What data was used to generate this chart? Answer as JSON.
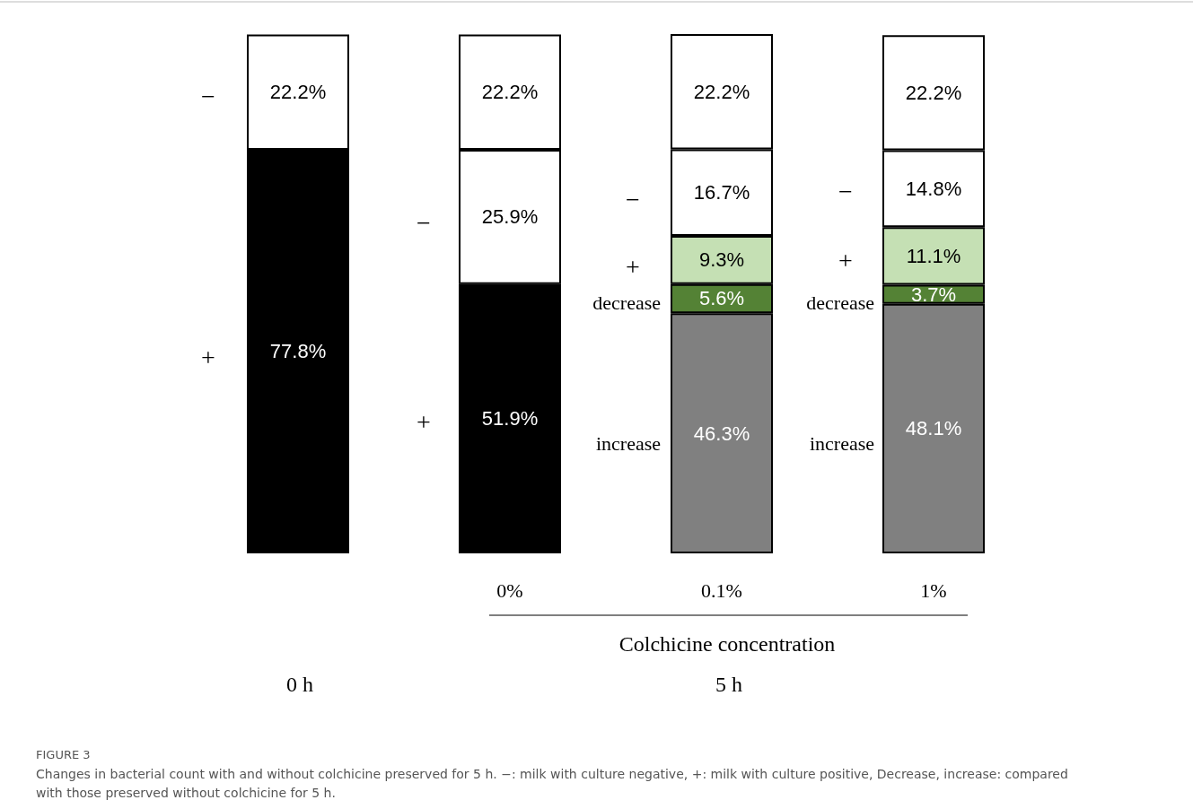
{
  "chart_data": {
    "type": "bar",
    "stacked": true,
    "categories": [
      null,
      "0%",
      "0.1%",
      "1%"
    ],
    "series": [
      {
        "values": [
          77.8,
          51.9,
          46.3,
          48.1
        ],
        "colors": [
          "#000000",
          "#000000",
          "#808080",
          "#808080"
        ],
        "value_labels": [
          "77.8%",
          "51.9%",
          "46.3%",
          "48.1%"
        ]
      },
      {
        "values": [
          null,
          null,
          5.6,
          3.7
        ],
        "color": "#548235",
        "value_labels": [
          null,
          null,
          "5.6%",
          "3.7%"
        ]
      },
      {
        "values": [
          null,
          null,
          9.3,
          11.1
        ],
        "color": "#c5e0b4",
        "value_labels": [
          null,
          null,
          "9.3%",
          "11.1%"
        ]
      },
      {
        "values": [
          null,
          25.9,
          16.7,
          14.8
        ],
        "color": "#ffffff",
        "value_labels": [
          null,
          "25.9%",
          "16.7%",
          "14.8%"
        ]
      },
      {
        "values": [
          22.2,
          22.2,
          22.2,
          22.2
        ],
        "color": "#ffffff",
        "value_labels": [
          "22.2%",
          "22.2%",
          "22.2%",
          "22.2%"
        ]
      }
    ],
    "annotations": [
      "−",
      "+",
      "−",
      "+",
      "−",
      "+",
      "decrease",
      "increase",
      "−",
      "+",
      "decrease",
      "increase",
      "Colchicine concentration",
      "0 h",
      "5 h",
      "FIGURE 3",
      "Changes in bacterial count with and without colchicine preserved for 5 h. −: milk with culture negative, +: milk with culture positive, Decrease, increase: compared with those preserved without colchicine for 5 h."
    ]
  }
}
